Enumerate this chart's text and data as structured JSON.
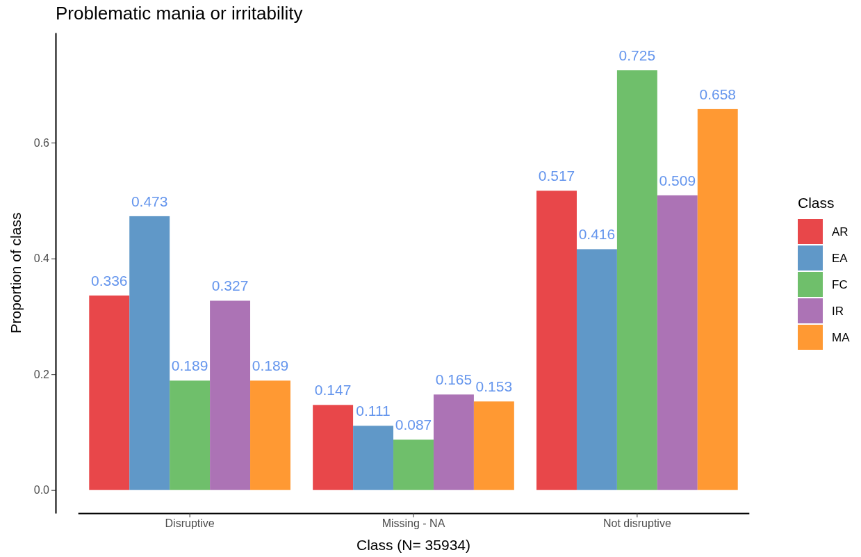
{
  "chart_data": {
    "type": "bar",
    "title": "Problematic mania or irritability",
    "xlabel": "Class (N= 35934)",
    "ylabel": "Proportion of class",
    "legend_title": "Class",
    "categories": [
      "Disruptive",
      "Missing - NA",
      "Not disruptive"
    ],
    "series": [
      {
        "name": "AR",
        "color": "#e8474a",
        "values": [
          0.336,
          0.147,
          0.517
        ]
      },
      {
        "name": "EA",
        "color": "#6098c8",
        "values": [
          0.473,
          0.111,
          0.416
        ]
      },
      {
        "name": "FC",
        "color": "#6fbf6b",
        "values": [
          0.189,
          0.087,
          0.725
        ]
      },
      {
        "name": "IR",
        "color": "#ac73b5",
        "values": [
          0.327,
          0.165,
          0.509
        ]
      },
      {
        "name": "MA",
        "color": "#ff9933",
        "values": [
          0.189,
          0.153,
          0.658
        ]
      }
    ],
    "ylim": [
      -0.04,
      0.79
    ],
    "yticks": [
      {
        "value": 0,
        "label": "0.0"
      },
      {
        "value": 0.2,
        "label": "0.2"
      },
      {
        "value": 0.4,
        "label": "0.4"
      },
      {
        "value": 0.6,
        "label": "0.6"
      }
    ],
    "data_labels": true,
    "grid": false,
    "legend": "right"
  }
}
